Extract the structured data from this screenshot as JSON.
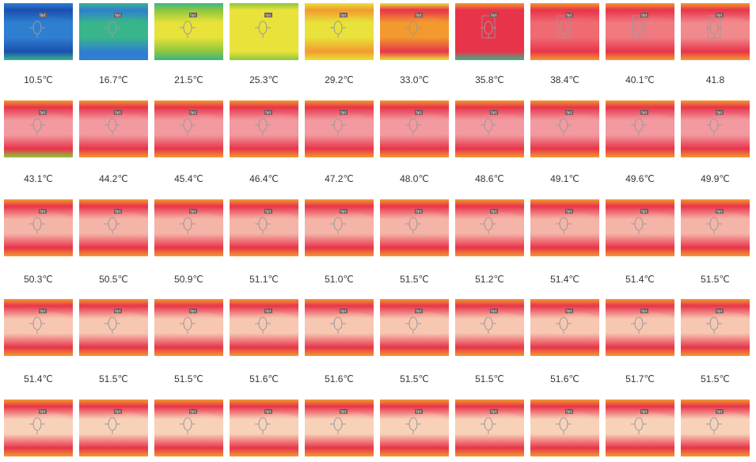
{
  "frames": [
    {
      "temp": "10.5℃",
      "marker": "Sp1",
      "box": false
    },
    {
      "temp": "16.7℃",
      "marker": "Sp1",
      "box": false
    },
    {
      "temp": "21.5℃",
      "marker": "Sp1",
      "box": false
    },
    {
      "temp": "25.3℃",
      "marker": "Sp1",
      "box": false
    },
    {
      "temp": "29.2℃",
      "marker": "Sp1",
      "box": false
    },
    {
      "temp": "33.0℃",
      "marker": "Sp1",
      "box": false
    },
    {
      "temp": "35.8℃",
      "marker": "Sp1",
      "box": true
    },
    {
      "temp": "38.4℃",
      "marker": "Sp1",
      "box": true
    },
    {
      "temp": "40.1℃",
      "marker": "Sp1",
      "box": true
    },
    {
      "temp": "41.8",
      "marker": "Sp1",
      "box": true
    },
    {
      "temp": "43.1℃",
      "marker": "Sp1",
      "box": false
    },
    {
      "temp": "44.2℃",
      "marker": "Sp1",
      "box": false
    },
    {
      "temp": "45.4℃",
      "marker": "Sp1",
      "box": false
    },
    {
      "temp": "46.4℃",
      "marker": "Sp1",
      "box": false
    },
    {
      "temp": "47.2℃",
      "marker": "Sp1",
      "box": false
    },
    {
      "temp": "48.0℃",
      "marker": "Sp1",
      "box": false
    },
    {
      "temp": "48.6℃",
      "marker": "Sp1",
      "box": false
    },
    {
      "temp": "49.1℃",
      "marker": "Sp1",
      "box": false
    },
    {
      "temp": "49.6℃",
      "marker": "Sp1",
      "box": false
    },
    {
      "temp": "49.9℃",
      "marker": "Sp1",
      "box": false
    },
    {
      "temp": "50.3℃",
      "marker": "Sp1",
      "box": false
    },
    {
      "temp": "50.5℃",
      "marker": "Sp1",
      "box": false
    },
    {
      "temp": "50.9℃",
      "marker": "Sp1",
      "box": false
    },
    {
      "temp": "51.1℃",
      "marker": "Sp1",
      "box": false
    },
    {
      "temp": "51.0℃",
      "marker": "Sp1",
      "box": false
    },
    {
      "temp": "51.5℃",
      "marker": "Sp1",
      "box": false
    },
    {
      "temp": "51.2℃",
      "marker": "Sp1",
      "box": false
    },
    {
      "temp": "51.4℃",
      "marker": "Sp1",
      "box": false
    },
    {
      "temp": "51.4℃",
      "marker": "Sp1",
      "box": false
    },
    {
      "temp": "51.5℃",
      "marker": "Sp1",
      "box": false
    },
    {
      "temp": "51.4℃",
      "marker": "Sp1",
      "box": false
    },
    {
      "temp": "51.5℃",
      "marker": "Sp1",
      "box": false
    },
    {
      "temp": "51.5℃",
      "marker": "Sp1",
      "box": false
    },
    {
      "temp": "51.6℃",
      "marker": "Sp1",
      "box": false
    },
    {
      "temp": "51.6℃",
      "marker": "Sp1",
      "box": false
    },
    {
      "temp": "51.5℃",
      "marker": "Sp1",
      "box": false
    },
    {
      "temp": "51.5℃",
      "marker": "Sp1",
      "box": false
    },
    {
      "temp": "51.6℃",
      "marker": "Sp1",
      "box": false
    },
    {
      "temp": "51.7℃",
      "marker": "Sp1",
      "box": false
    },
    {
      "temp": "51.5℃",
      "marker": "Sp1",
      "box": false
    },
    {
      "temp": "",
      "marker": "Sp1",
      "box": false
    },
    {
      "temp": "",
      "marker": "Sp1",
      "box": false
    },
    {
      "temp": "",
      "marker": "Sp1",
      "box": false
    },
    {
      "temp": "",
      "marker": "Sp1",
      "box": false
    },
    {
      "temp": "",
      "marker": "Sp1",
      "box": false
    },
    {
      "temp": "",
      "marker": "Sp1",
      "box": false
    },
    {
      "temp": "",
      "marker": "Sp1",
      "box": false
    },
    {
      "temp": "",
      "marker": "Sp1",
      "box": false
    },
    {
      "temp": "",
      "marker": "Sp1",
      "box": false
    },
    {
      "temp": "",
      "marker": "Sp1",
      "box": false
    }
  ],
  "palette": {
    "cold_dark": "#1a4fb0",
    "cold": "#2f7fd0",
    "cool": "#39b58a",
    "green": "#8cc63f",
    "yellow": "#e8e23a",
    "orange": "#f29a2e",
    "red": "#e8344a",
    "hot": "#f4c9b4",
    "marker_line": "#9a9a9a",
    "marker_tag": "#6b5a5a"
  }
}
